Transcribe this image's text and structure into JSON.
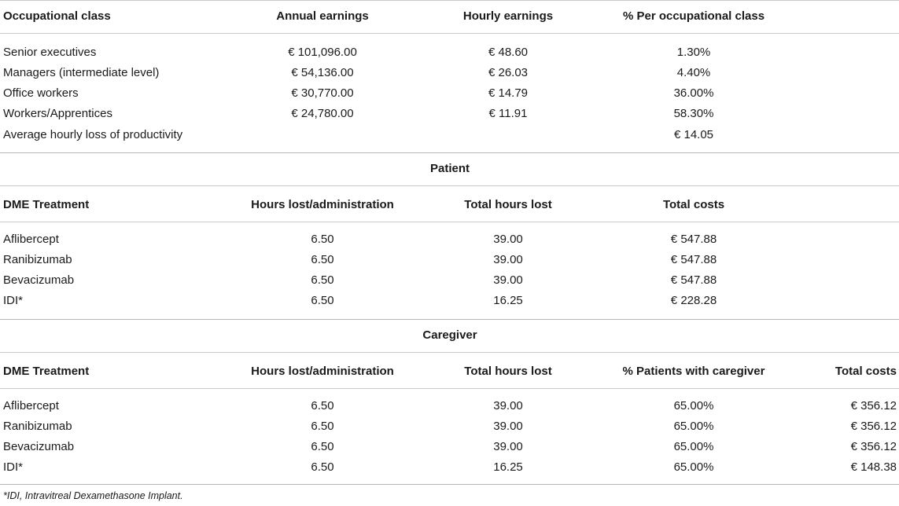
{
  "section1": {
    "headers": [
      "Occupational class",
      "Annual earnings",
      "Hourly earnings",
      "% Per occupational class"
    ],
    "rows": [
      [
        "Senior executives",
        "€ 101,096.00",
        "€ 48.60",
        "1.30%"
      ],
      [
        "Managers (intermediate level)",
        "€ 54,136.00",
        "€ 26.03",
        "4.40%"
      ],
      [
        "Office workers",
        "€ 30,770.00",
        "€ 14.79",
        "36.00%"
      ],
      [
        "Workers/Apprentices",
        "€ 24,780.00",
        "€ 11.91",
        "58.30%"
      ]
    ],
    "average_label": "Average hourly loss of productivity",
    "average_value": "€ 14.05"
  },
  "patient": {
    "title": "Patient",
    "headers": [
      "DME Treatment",
      "Hours lost/administration",
      "Total hours lost",
      "Total costs"
    ],
    "rows": [
      [
        "Aflibercept",
        "6.50",
        "39.00",
        "€ 547.88"
      ],
      [
        "Ranibizumab",
        "6.50",
        "39.00",
        "€ 547.88"
      ],
      [
        "Bevacizumab",
        "6.50",
        "39.00",
        "€ 547.88"
      ],
      [
        "IDI*",
        "6.50",
        "16.25",
        "€ 228.28"
      ]
    ]
  },
  "caregiver": {
    "title": "Caregiver",
    "headers": [
      "DME Treatment",
      "Hours lost/administration",
      "Total hours lost",
      "% Patients with caregiver",
      "Total costs"
    ],
    "rows": [
      [
        "Aflibercept",
        "6.50",
        "39.00",
        "65.00%",
        "€ 356.12"
      ],
      [
        "Ranibizumab",
        "6.50",
        "39.00",
        "65.00%",
        "€ 356.12"
      ],
      [
        "Bevacizumab",
        "6.50",
        "39.00",
        "65.00%",
        "€ 356.12"
      ],
      [
        "IDI*",
        "6.50",
        "16.25",
        "65.00%",
        "€ 148.38"
      ]
    ]
  },
  "footnote": "*IDI, Intravitreal Dexamethasone Implant."
}
